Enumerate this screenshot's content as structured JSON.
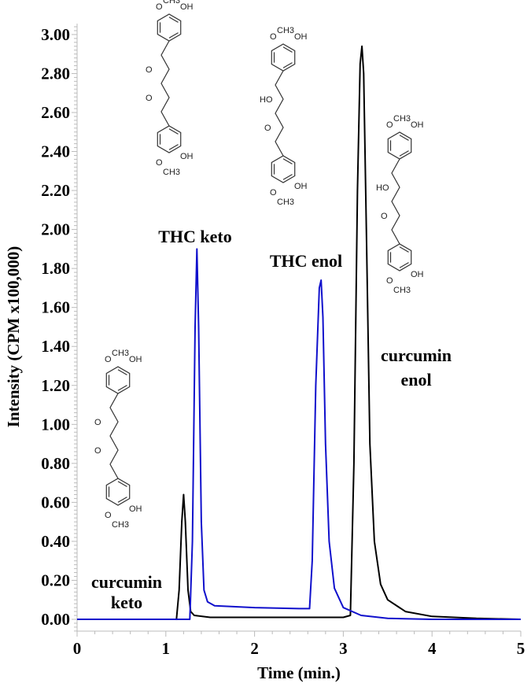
{
  "chart_data": {
    "type": "line",
    "title": "",
    "xlabel": "Time (min.)",
    "ylabel": "Intensity (CPM x100,000)",
    "xlim": [
      0,
      5
    ],
    "ylim": [
      -0.06,
      3.06
    ],
    "x_ticks": [
      "0",
      "1",
      "2",
      "3",
      "4",
      "5"
    ],
    "y_ticks": [
      "0.00",
      "0.20",
      "0.40",
      "0.60",
      "0.80",
      "1.00",
      "1.20",
      "1.40",
      "1.60",
      "1.80",
      "2.00",
      "2.20",
      "2.40",
      "2.60",
      "2.80",
      "3.00"
    ],
    "grid": false,
    "legend": null,
    "series": [
      {
        "name": "curcumin",
        "color": "#000000",
        "x": [
          0,
          1.12,
          1.15,
          1.18,
          1.2,
          1.22,
          1.25,
          1.28,
          1.32,
          1.5,
          2.0,
          2.5,
          3.0,
          3.08,
          3.12,
          3.16,
          3.19,
          3.21,
          3.23,
          3.26,
          3.3,
          3.35,
          3.42,
          3.5,
          3.7,
          4.0,
          4.5,
          5.0
        ],
        "y": [
          0,
          0,
          0.15,
          0.5,
          0.64,
          0.5,
          0.15,
          0.04,
          0.02,
          0.01,
          0.01,
          0.01,
          0.01,
          0.02,
          0.8,
          2.2,
          2.85,
          2.94,
          2.8,
          2.0,
          0.9,
          0.4,
          0.18,
          0.1,
          0.04,
          0.015,
          0.005,
          0
        ]
      },
      {
        "name": "THC",
        "color": "#1010cc",
        "x": [
          0,
          1.27,
          1.3,
          1.33,
          1.35,
          1.37,
          1.4,
          1.43,
          1.47,
          1.55,
          2.0,
          2.5,
          2.62,
          2.65,
          2.69,
          2.73,
          2.75,
          2.77,
          2.8,
          2.84,
          2.9,
          3.0,
          3.2,
          3.5,
          4.0,
          5.0
        ],
        "y": [
          0,
          0,
          0.4,
          1.5,
          1.9,
          1.5,
          0.5,
          0.15,
          0.09,
          0.07,
          0.06,
          0.055,
          0.055,
          0.3,
          1.2,
          1.7,
          1.74,
          1.55,
          0.9,
          0.4,
          0.16,
          0.06,
          0.02,
          0.005,
          0,
          0
        ]
      }
    ],
    "annotations": [
      {
        "text": "curcumin keto",
        "x": 1.2,
        "y": 0.64
      },
      {
        "text": "THC keto",
        "x": 1.35,
        "y": 1.9
      },
      {
        "text": "THC enol",
        "x": 2.75,
        "y": 1.74
      },
      {
        "text": "curcumin enol",
        "x": 3.21,
        "y": 2.94
      }
    ]
  },
  "labels": {
    "curcumin_keto_1": "curcumin",
    "curcumin_keto_2": "keto",
    "thc_keto": "THC keto",
    "thc_enol": "THC enol",
    "curcumin_enol_1": "curcumin",
    "curcumin_enol_2": "enol"
  },
  "chem": {
    "ch3": "CH3",
    "oh": "OH",
    "ho": "HO",
    "o": "O"
  }
}
